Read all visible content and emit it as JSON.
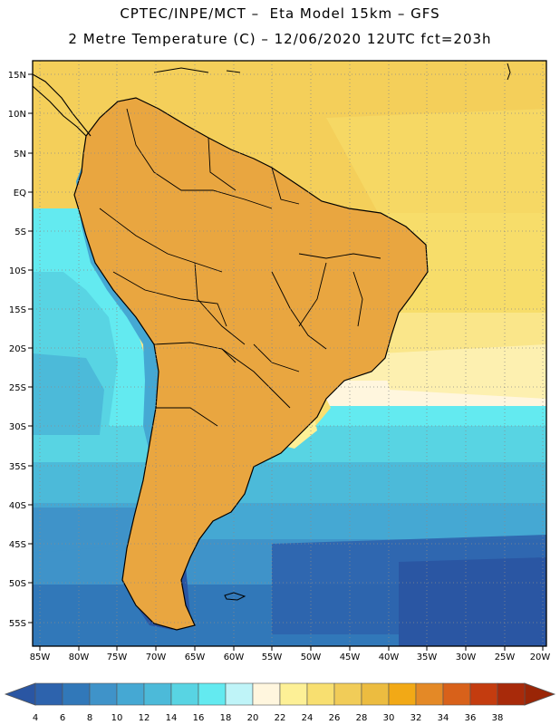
{
  "header": {
    "title_line1": "CPTEC/INPE/MCT –  Eta Model 15km – GFS",
    "title_line2": "2 Metre Temperature (C) – 12/06/2020 12UTC fct=203h"
  },
  "map": {
    "lat_labels": [
      "15N",
      "10N",
      "5N",
      "EQ",
      "5S",
      "10S",
      "15S",
      "20S",
      "25S",
      "30S",
      "35S",
      "40S",
      "45S",
      "50S",
      "55S"
    ],
    "lon_labels": [
      "85W",
      "80W",
      "75W",
      "70W",
      "65W",
      "60W",
      "55W",
      "50W",
      "45W",
      "40W",
      "35W",
      "30W",
      "25W",
      "20W"
    ],
    "gridlines": "dotted",
    "coastline_color": "#000000"
  },
  "colorbar": {
    "labels": [
      "4",
      "6",
      "8",
      "10",
      "12",
      "14",
      "16",
      "18",
      "20",
      "22",
      "24",
      "26",
      "28",
      "30",
      "32",
      "34",
      "36",
      "38"
    ],
    "colors": [
      "#2d63ad",
      "#3178b9",
      "#3f93c9",
      "#45a8d3",
      "#4cbad9",
      "#58d4e3",
      "#63eaf0",
      "#bff4f8",
      "#fff6de",
      "#fdf096",
      "#f8df70",
      "#f1cc58",
      "#ecbc40",
      "#f2a916",
      "#e48926",
      "#d8611a",
      "#c43c0f",
      "#a82a0a"
    ],
    "below_color": "#2a56a3",
    "above_color": "#9a2506"
  }
}
